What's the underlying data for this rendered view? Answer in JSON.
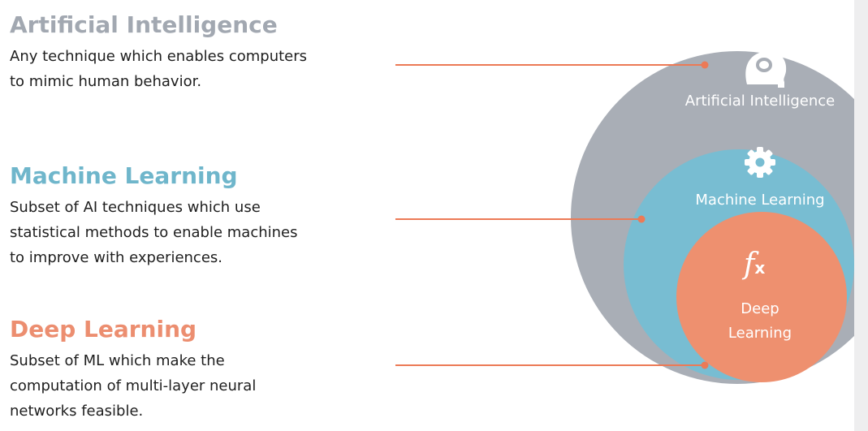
{
  "sections": {
    "ai": {
      "title": "Artificial Intelligence",
      "lines": [
        "Any technique which enables computers",
        "to mimic human behavior."
      ]
    },
    "ml": {
      "title": "Machine Learning",
      "lines": [
        "Subset of AI techniques which use",
        "statistical methods to enable machines",
        "to improve with experiences."
      ]
    },
    "dl": {
      "title": "Deep Learning",
      "lines": [
        "Subset of ML which make the",
        "computation of multi-layer neural",
        "networks feasible."
      ]
    }
  },
  "circles": {
    "ai": {
      "label": "Artificial Intelligence",
      "icon": "head-brain-icon",
      "color": "#a9aeb6"
    },
    "ml": {
      "label": "Machine Learning",
      "icon": "gear-icon",
      "color": "#78bdd2"
    },
    "dl": {
      "label_line1": "Deep",
      "label_line2": "Learning",
      "icon": "function-icon",
      "icon_text": "𝑓",
      "icon_sub": "x",
      "color": "#ee906f"
    }
  },
  "connector_color": "#ec7a56"
}
